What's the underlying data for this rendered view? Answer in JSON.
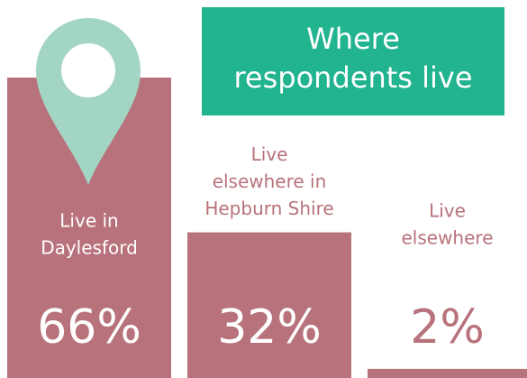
{
  "chart_data": {
    "type": "bar",
    "title": [
      "Where",
      "respondents live"
    ],
    "categories": [
      [
        "Live in",
        "Daylesford"
      ],
      [
        "Live",
        "elsewhere in",
        "Hepburn Shire"
      ],
      [
        "Live",
        "elsewhere"
      ]
    ],
    "values": [
      66,
      32,
      2
    ],
    "value_labels": [
      "66%",
      "32%",
      "2%"
    ],
    "color": "#b8727b"
  }
}
